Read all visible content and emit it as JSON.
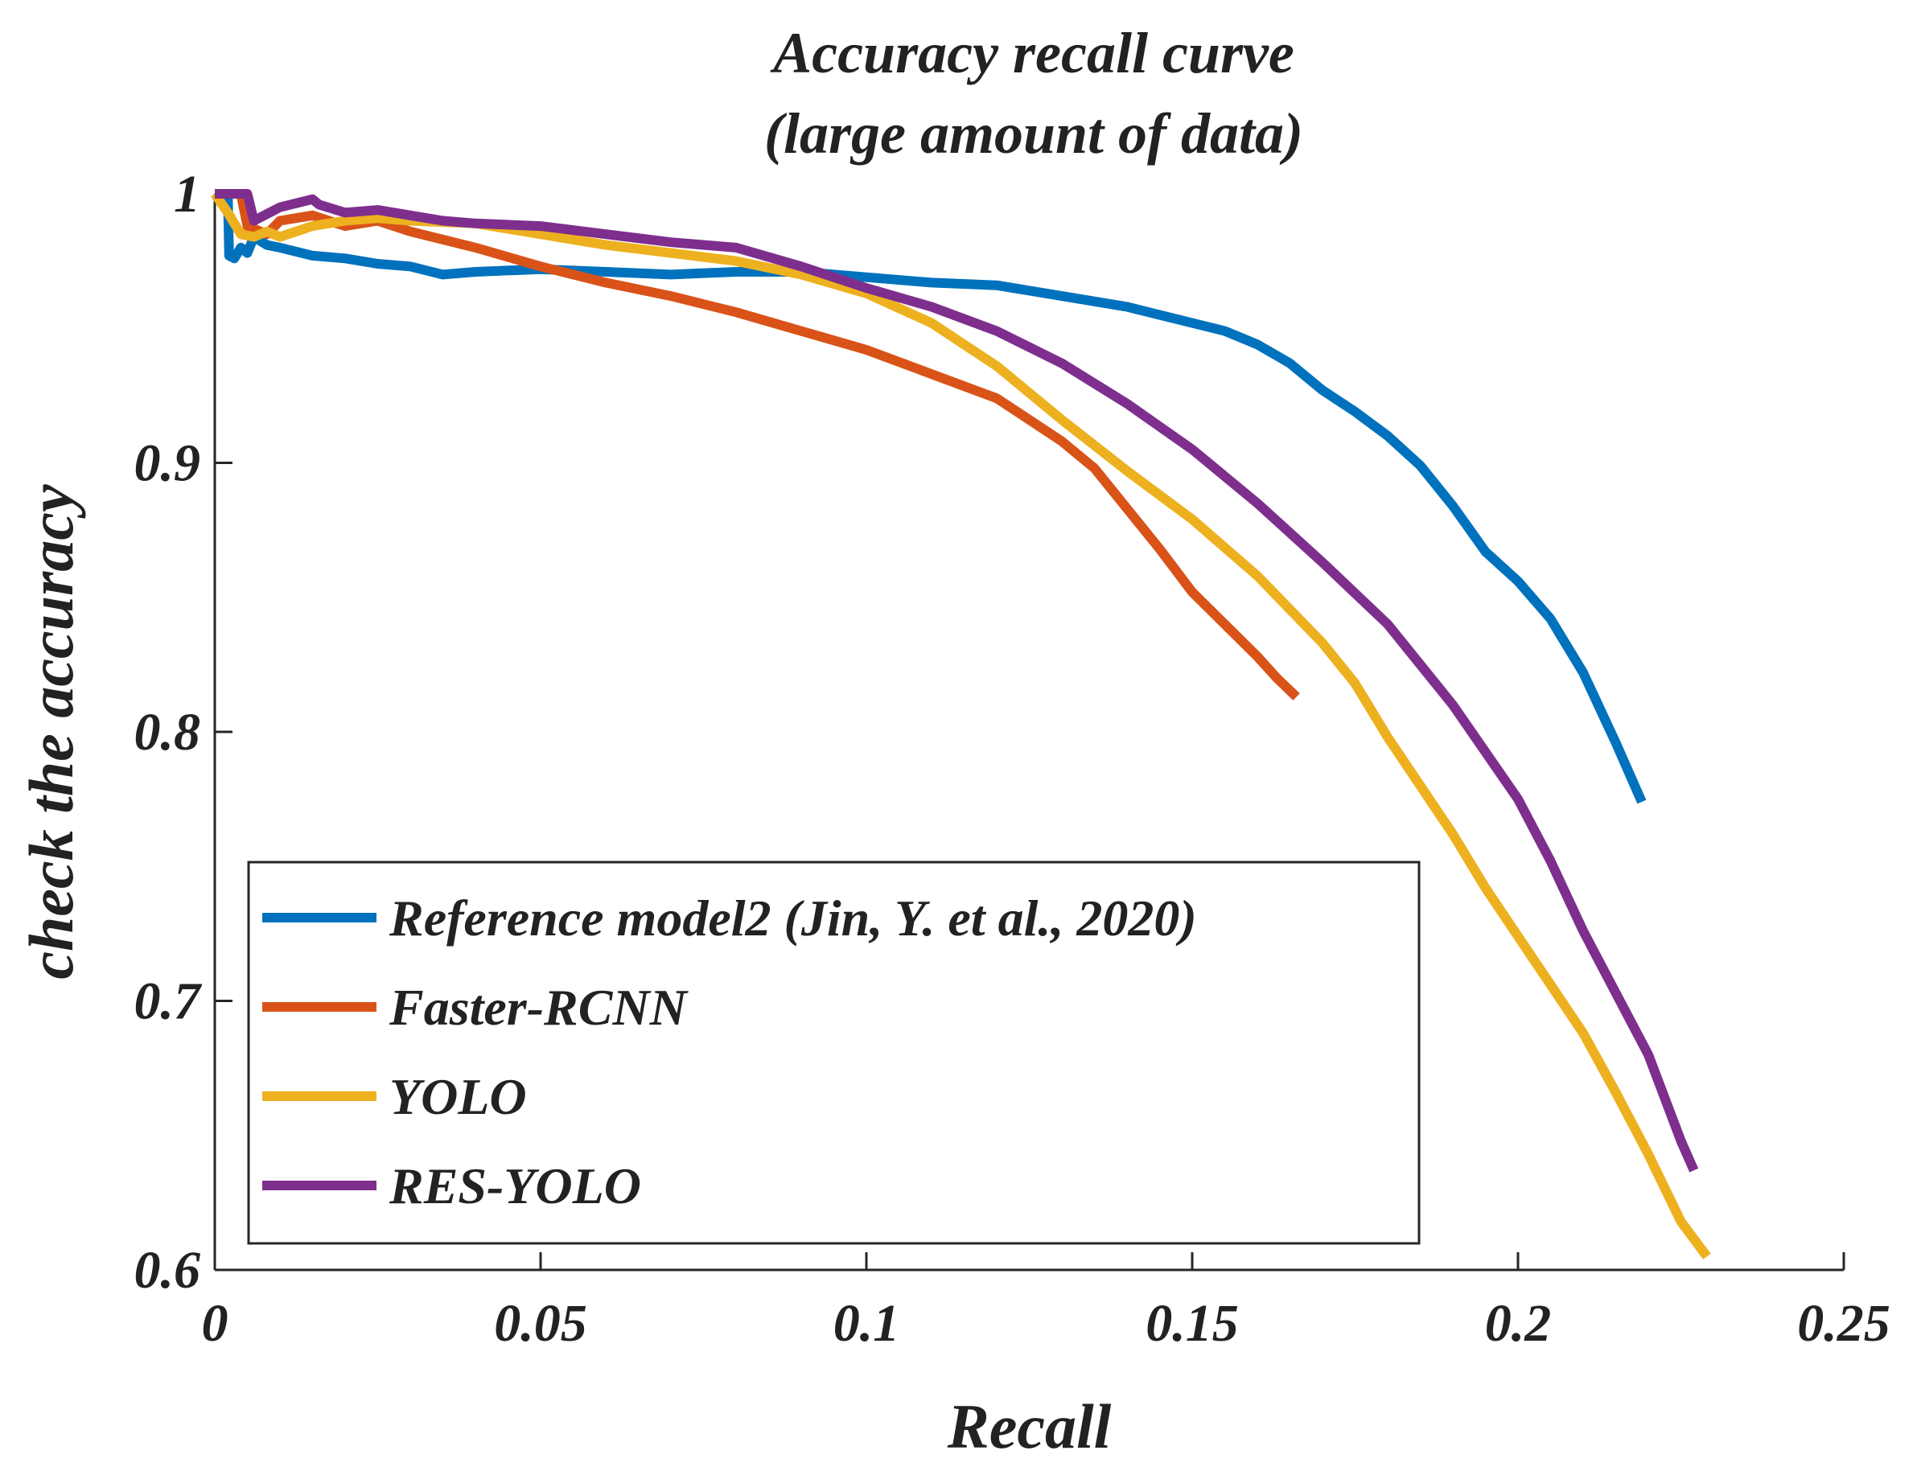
{
  "chart_data": {
    "type": "line",
    "title": [
      "Accuracy recall curve",
      "(large amount of data)"
    ],
    "xlabel": "Recall",
    "ylabel": "check the accuracy",
    "xlim": [
      0,
      0.25
    ],
    "ylim": [
      0.6,
      1.0
    ],
    "xticks": [
      0,
      0.05,
      0.1,
      0.15,
      0.2,
      0.25
    ],
    "xtick_labels": [
      "0",
      "0.05",
      "0.1",
      "0.15",
      "0.2",
      "0.25"
    ],
    "yticks": [
      0.6,
      0.7,
      0.8,
      0.9,
      1.0
    ],
    "ytick_labels": [
      "0.6",
      "0.7",
      "0.8",
      "0.9",
      "1"
    ],
    "grid": false,
    "legend_position": "lower-left",
    "series": [
      {
        "name": "Reference model2 (Jin, Y. et al., 2020)",
        "color": "#0072BD",
        "x": [
          0,
          0.002,
          0.0022,
          0.003,
          0.004,
          0.005,
          0.006,
          0.008,
          0.01,
          0.015,
          0.02,
          0.025,
          0.03,
          0.035,
          0.04,
          0.05,
          0.06,
          0.07,
          0.08,
          0.09,
          0.1,
          0.11,
          0.12,
          0.13,
          0.14,
          0.15,
          0.155,
          0.16,
          0.165,
          0.17,
          0.175,
          0.18,
          0.185,
          0.19,
          0.195,
          0.2,
          0.205,
          0.21,
          0.215,
          0.219
        ],
        "y": [
          1.0,
          1.0,
          0.977,
          0.976,
          0.98,
          0.978,
          0.984,
          0.981,
          0.98,
          0.977,
          0.976,
          0.974,
          0.973,
          0.97,
          0.971,
          0.972,
          0.971,
          0.97,
          0.971,
          0.971,
          0.969,
          0.967,
          0.966,
          0.962,
          0.958,
          0.952,
          0.949,
          0.944,
          0.937,
          0.927,
          0.919,
          0.91,
          0.899,
          0.884,
          0.867,
          0.856,
          0.842,
          0.822,
          0.796,
          0.774
        ]
      },
      {
        "name": "Faster-RCNN",
        "color": "#D95319",
        "x": [
          0,
          0.004,
          0.005,
          0.008,
          0.01,
          0.015,
          0.02,
          0.025,
          0.03,
          0.04,
          0.05,
          0.06,
          0.07,
          0.08,
          0.09,
          0.1,
          0.11,
          0.12,
          0.13,
          0.135,
          0.14,
          0.145,
          0.15,
          0.155,
          0.16,
          0.163,
          0.166
        ],
        "y": [
          1.0,
          1.0,
          0.988,
          0.985,
          0.99,
          0.992,
          0.988,
          0.99,
          0.986,
          0.98,
          0.973,
          0.967,
          0.962,
          0.956,
          0.949,
          0.942,
          0.933,
          0.924,
          0.908,
          0.898,
          0.883,
          0.868,
          0.852,
          0.84,
          0.828,
          0.82,
          0.813
        ]
      },
      {
        "name": "YOLO",
        "color": "#EDB120",
        "x": [
          0,
          0.002,
          0.004,
          0.006,
          0.008,
          0.01,
          0.015,
          0.02,
          0.025,
          0.03,
          0.04,
          0.05,
          0.06,
          0.07,
          0.08,
          0.09,
          0.1,
          0.11,
          0.12,
          0.13,
          0.14,
          0.15,
          0.16,
          0.17,
          0.175,
          0.18,
          0.185,
          0.19,
          0.195,
          0.2,
          0.205,
          0.21,
          0.215,
          0.22,
          0.225,
          0.229
        ],
        "y": [
          1.0,
          0.993,
          0.985,
          0.984,
          0.986,
          0.984,
          0.988,
          0.99,
          0.991,
          0.99,
          0.989,
          0.985,
          0.981,
          0.978,
          0.975,
          0.97,
          0.963,
          0.952,
          0.936,
          0.916,
          0.897,
          0.879,
          0.858,
          0.833,
          0.818,
          0.798,
          0.78,
          0.762,
          0.742,
          0.724,
          0.706,
          0.688,
          0.666,
          0.643,
          0.618,
          0.605
        ]
      },
      {
        "name": "RES-YOLO",
        "color": "#7E2F8E",
        "x": [
          0,
          0.005,
          0.006,
          0.01,
          0.015,
          0.016,
          0.02,
          0.025,
          0.03,
          0.035,
          0.04,
          0.05,
          0.06,
          0.07,
          0.08,
          0.09,
          0.1,
          0.11,
          0.12,
          0.13,
          0.14,
          0.15,
          0.16,
          0.17,
          0.18,
          0.19,
          0.2,
          0.205,
          0.21,
          0.215,
          0.22,
          0.225,
          0.227
        ],
        "y": [
          1.0,
          1.0,
          0.99,
          0.995,
          0.998,
          0.996,
          0.993,
          0.994,
          0.992,
          0.99,
          0.989,
          0.988,
          0.985,
          0.982,
          0.98,
          0.973,
          0.965,
          0.958,
          0.949,
          0.937,
          0.922,
          0.905,
          0.885,
          0.863,
          0.84,
          0.81,
          0.775,
          0.752,
          0.726,
          0.703,
          0.68,
          0.648,
          0.637
        ]
      }
    ]
  }
}
